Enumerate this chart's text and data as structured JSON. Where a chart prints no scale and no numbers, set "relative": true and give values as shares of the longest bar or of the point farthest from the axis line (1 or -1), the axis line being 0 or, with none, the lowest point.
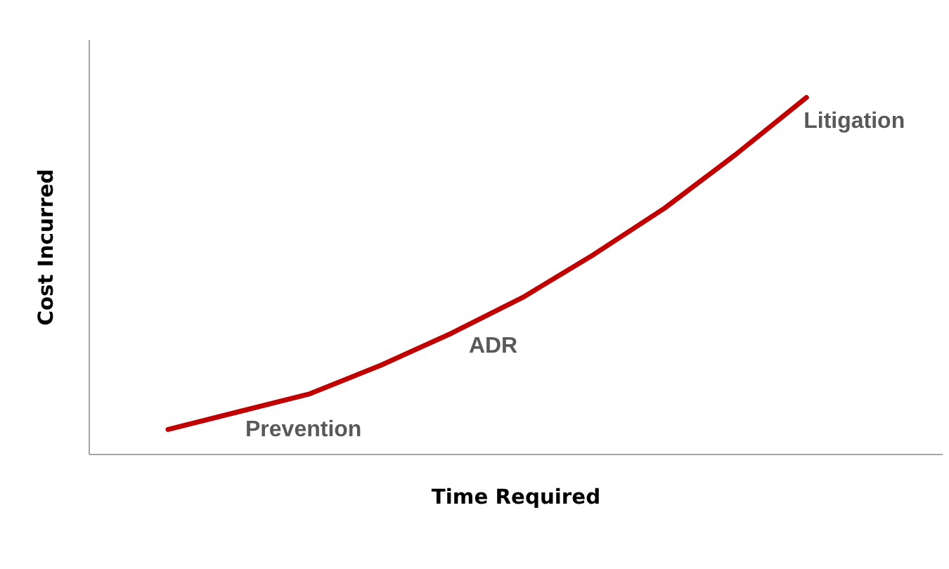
{
  "chart_data": {
    "type": "line",
    "relative": true,
    "xlabel": "Time Required",
    "ylabel": "Cost Incurred",
    "categories": [
      null,
      null,
      null,
      null,
      null,
      null,
      null,
      null,
      null,
      null
    ],
    "series": [
      {
        "color": "#c00000",
        "values": [
          0.07,
          0.12,
          0.17,
          0.25,
          0.34,
          0.44,
          0.56,
          0.69,
          0.84,
          1.0
        ]
      }
    ],
    "annotations": [
      "Litigation",
      "ADR",
      "Prevention"
    ],
    "marker": "none",
    "line_style": "solid"
  }
}
